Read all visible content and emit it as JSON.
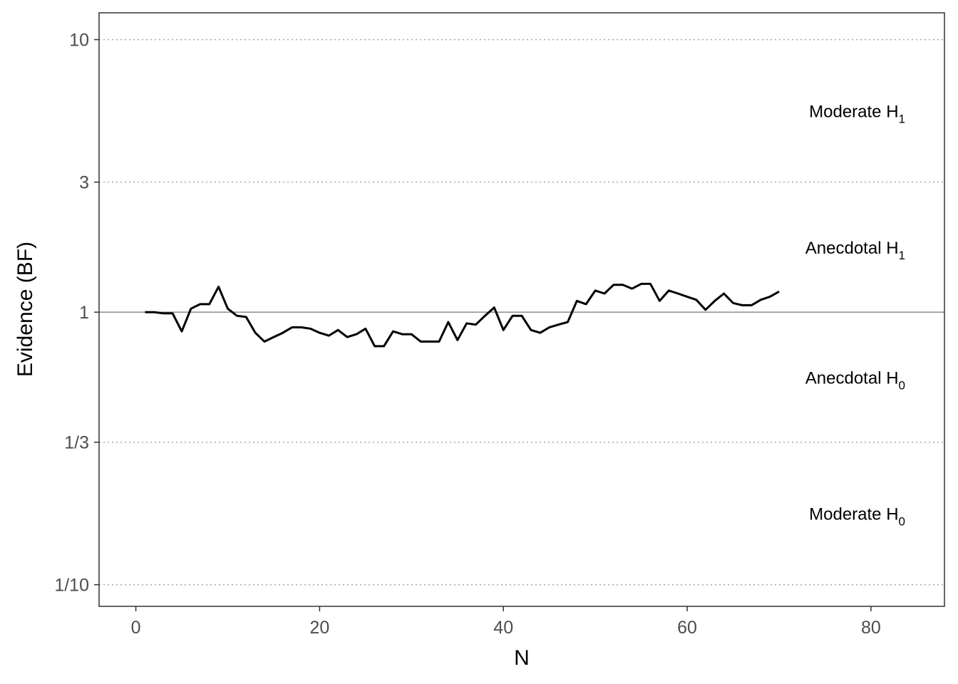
{
  "chart_data": {
    "type": "line",
    "xlabel": "N",
    "ylabel": "Evidence (BF)",
    "xlim": [
      -4,
      88
    ],
    "ylim": [
      0.0833,
      12.54
    ],
    "yscale": "log",
    "xticks": [
      0,
      20,
      40,
      60,
      80
    ],
    "yticks": [
      {
        "value": 10,
        "label": "10"
      },
      {
        "value": 3,
        "label": "3"
      },
      {
        "value": 1,
        "label": "1"
      },
      {
        "value": 0.3333,
        "label": "1/3"
      },
      {
        "value": 0.1,
        "label": "1/10"
      }
    ],
    "reference_lines": [
      {
        "value": 10,
        "style": "dotted"
      },
      {
        "value": 3,
        "style": "dotted"
      },
      {
        "value": 1,
        "style": "solid"
      },
      {
        "value": 0.3333,
        "style": "dotted"
      },
      {
        "value": 0.1,
        "style": "dotted"
      }
    ],
    "zones": [
      {
        "label": "Moderate H",
        "sub": "1",
        "value": 5.48
      },
      {
        "label": "Anecdotal H",
        "sub": "1",
        "value": 1.73
      },
      {
        "label": "Anecdotal H",
        "sub": "0",
        "value": 0.577
      },
      {
        "label": "Moderate H",
        "sub": "0",
        "value": 0.183
      }
    ],
    "series": [
      {
        "x": [
          1,
          2,
          3,
          4,
          5,
          6,
          7,
          8,
          9,
          10,
          11,
          12,
          13,
          14,
          15,
          16,
          17,
          18,
          19,
          20,
          21,
          22,
          23,
          24,
          25,
          26,
          27,
          28,
          29,
          30,
          31,
          32,
          33,
          34,
          35,
          36,
          37,
          38,
          39,
          40,
          41,
          42,
          43,
          44,
          45,
          46,
          47,
          48,
          49,
          50,
          51,
          52,
          53,
          54,
          55,
          56,
          57,
          58,
          59,
          60,
          61,
          62,
          63,
          64,
          65,
          66,
          67,
          68,
          69,
          70
        ],
        "y": [
          1.0,
          1.0,
          0.99,
          0.99,
          0.85,
          1.03,
          1.07,
          1.07,
          1.24,
          1.03,
          0.97,
          0.96,
          0.84,
          0.78,
          0.81,
          0.84,
          0.88,
          0.88,
          0.87,
          0.84,
          0.82,
          0.86,
          0.81,
          0.83,
          0.87,
          0.75,
          0.75,
          0.85,
          0.83,
          0.83,
          0.78,
          0.78,
          0.78,
          0.92,
          0.79,
          0.91,
          0.9,
          0.97,
          1.04,
          0.86,
          0.97,
          0.97,
          0.86,
          0.84,
          0.88,
          0.9,
          0.92,
          1.1,
          1.07,
          1.2,
          1.17,
          1.26,
          1.26,
          1.22,
          1.27,
          1.27,
          1.1,
          1.2,
          1.17,
          1.14,
          1.11,
          1.02,
          1.1,
          1.17,
          1.08,
          1.06,
          1.06,
          1.11,
          1.14,
          1.19
        ]
      }
    ]
  }
}
